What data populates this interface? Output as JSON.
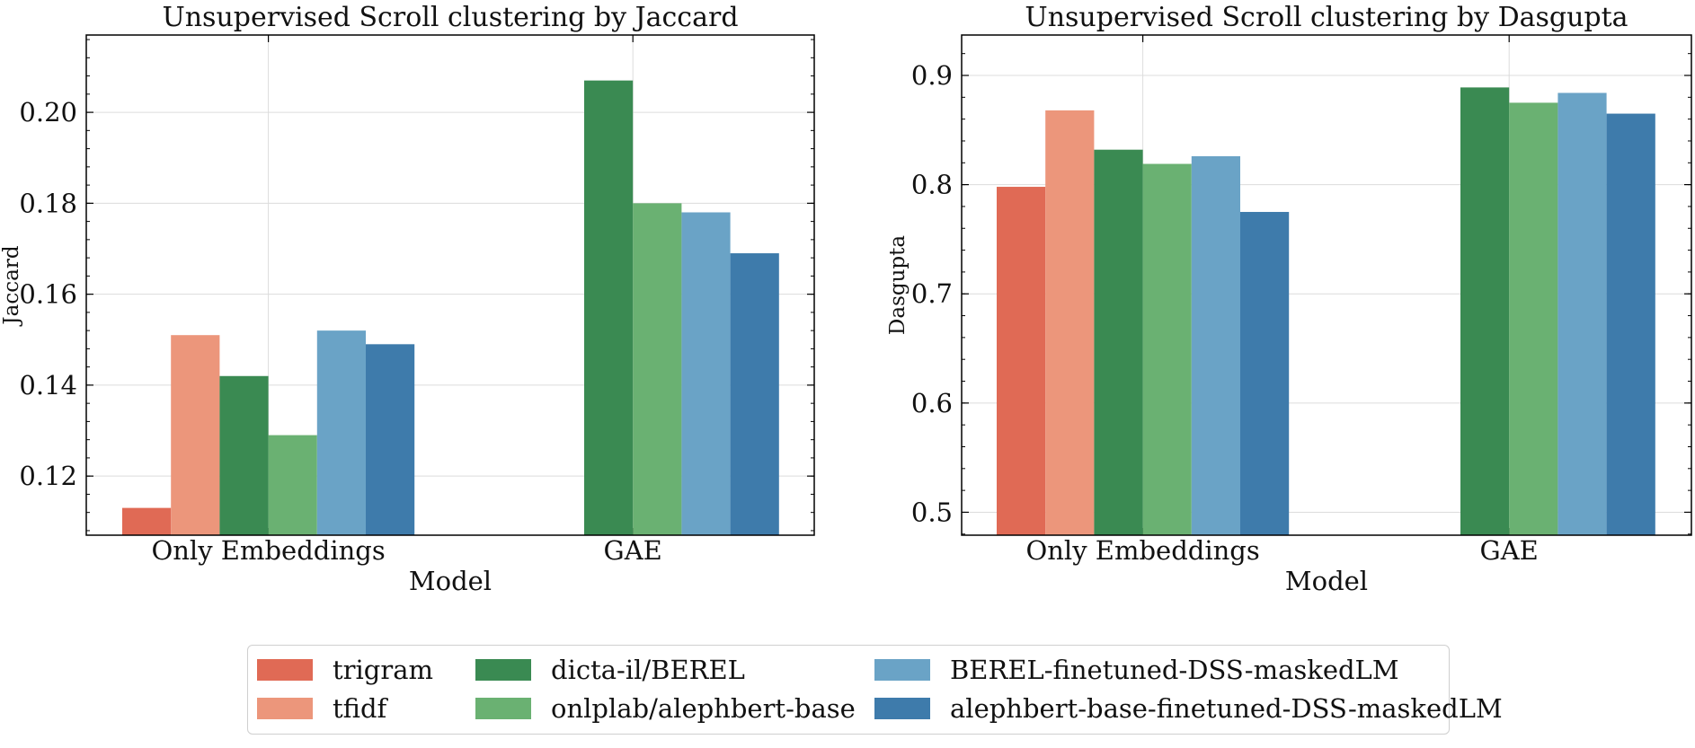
{
  "colors": {
    "trigram": "#e06a55",
    "tfidf": "#ec967b",
    "dicta-il/BEREL": "#3a8a52",
    "onlplab/alephbert-base": "#6ab172",
    "BEREL-finetuned-DSS-maskedLM": "#6aa3c6",
    "alephbert-base-finetuned-DSS-maskedLM": "#3e7bab"
  },
  "legend": [
    {
      "label": "trigram",
      "color": "#e06a55"
    },
    {
      "label": "tfidf",
      "color": "#ec967b"
    },
    {
      "label": "dicta-il/BEREL",
      "color": "#3a8a52"
    },
    {
      "label": "onlplab/alephbert-base",
      "color": "#6ab172"
    },
    {
      "label": "BEREL-finetuned-DSS-maskedLM",
      "color": "#6aa3c6"
    },
    {
      "label": "alephbert-base-finetuned-DSS-maskedLM",
      "color": "#3e7bab"
    }
  ],
  "chart_data": [
    {
      "type": "bar",
      "title": "Unsupervised Scroll clustering by Jaccard",
      "xlabel": "Model",
      "ylabel": "Jaccard",
      "categories": [
        "Only Embeddings",
        "GAE"
      ],
      "ylim": [
        0.107,
        0.217
      ],
      "yticks": [
        "0.12",
        "0.14",
        "0.16",
        "0.18",
        "0.20"
      ],
      "grid": true,
      "series": [
        {
          "name": "trigram",
          "values": [
            0.113,
            null
          ]
        },
        {
          "name": "tfidf",
          "values": [
            0.151,
            null
          ]
        },
        {
          "name": "dicta-il/BEREL",
          "values": [
            0.142,
            0.207
          ]
        },
        {
          "name": "onlplab/alephbert-base",
          "values": [
            0.129,
            0.18
          ]
        },
        {
          "name": "BEREL-finetuned-DSS-maskedLM",
          "values": [
            0.152,
            0.178
          ]
        },
        {
          "name": "alephbert-base-finetuned-DSS-maskedLM",
          "values": [
            0.149,
            0.169
          ]
        }
      ]
    },
    {
      "type": "bar",
      "title": "Unsupervised Scroll clustering by Dasgupta",
      "xlabel": "Model",
      "ylabel": "Dasgupta",
      "categories": [
        "Only Embeddings",
        "GAE"
      ],
      "ylim": [
        0.479,
        0.937
      ],
      "yticks": [
        "0.5",
        "0.6",
        "0.7",
        "0.8",
        "0.9"
      ],
      "grid": true,
      "series": [
        {
          "name": "trigram",
          "values": [
            0.798,
            null
          ]
        },
        {
          "name": "tfidf",
          "values": [
            0.868,
            null
          ]
        },
        {
          "name": "dicta-il/BEREL",
          "values": [
            0.832,
            0.889
          ]
        },
        {
          "name": "onlplab/alephbert-base",
          "values": [
            0.819,
            0.875
          ]
        },
        {
          "name": "BEREL-finetuned-DSS-maskedLM",
          "values": [
            0.826,
            0.884
          ]
        },
        {
          "name": "alephbert-base-finetuned-DSS-maskedLM",
          "values": [
            0.775,
            0.865
          ]
        }
      ]
    }
  ]
}
